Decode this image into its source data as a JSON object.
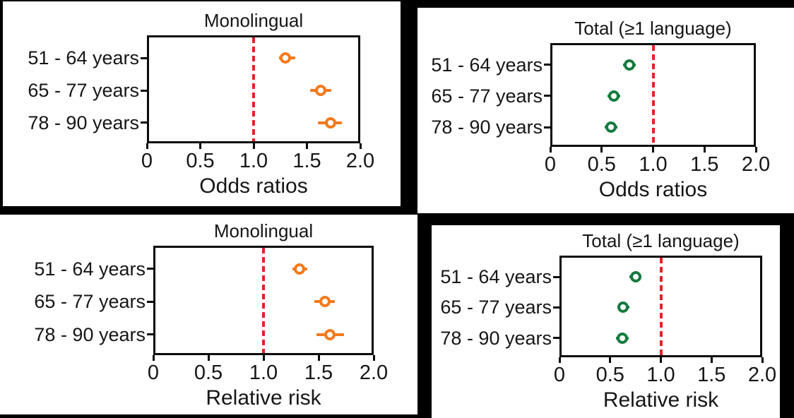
{
  "colors": {
    "background": "#000000",
    "panel": "#ffffff",
    "frame": "#0a0a0a",
    "text": "#161616",
    "reference_line": "#e6212a",
    "monolingual_marker": "#f3791b",
    "total_marker": "#147b3e"
  },
  "chart_data": [
    {
      "id": "monolingual-odds",
      "type": "scatter",
      "title": "Monolingual",
      "xlabel": "Odds ratios",
      "categories": [
        "51 - 64 years",
        "65 - 77 years",
        "78 - 90 years"
      ],
      "xlim": [
        0,
        2.0
      ],
      "xticks": [
        0,
        0.5,
        1.0,
        1.5,
        2.0
      ],
      "xtick_labels": [
        "0",
        "0.5",
        "1.0",
        "1.5",
        "2.0"
      ],
      "reference_x": 1.0,
      "grid": false,
      "series": [
        {
          "name": "Monolingual",
          "color_key": "monolingual_marker",
          "values": [
            1.3,
            1.63,
            1.72
          ],
          "ci_low": [
            1.24,
            1.53,
            1.6
          ],
          "ci_high": [
            1.39,
            1.73,
            1.83
          ]
        }
      ]
    },
    {
      "id": "total-odds",
      "type": "scatter",
      "title": "Total (≥1 language)",
      "xlabel": "Odds ratios",
      "categories": [
        "51 - 64 years",
        "65 - 77 years",
        "78 - 90 years"
      ],
      "xlim": [
        0,
        2.0
      ],
      "xticks": [
        0,
        0.5,
        1.0,
        1.5,
        2.0
      ],
      "xtick_labels": [
        "0",
        "0.5",
        "1.0",
        "1.5",
        "2.0"
      ],
      "reference_x": 1.0,
      "grid": false,
      "series": [
        {
          "name": "Total (≥1 language)",
          "color_key": "total_marker",
          "values": [
            0.77,
            0.62,
            0.59
          ],
          "ci_low": [
            0.71,
            0.56,
            0.53
          ],
          "ci_high": [
            0.83,
            0.68,
            0.65
          ]
        }
      ]
    },
    {
      "id": "monolingual-rr",
      "type": "scatter",
      "title": "Monolingual",
      "xlabel": "Relative risk",
      "categories": [
        "51 - 64 years",
        "65 - 77 years",
        "78 - 90 years"
      ],
      "xlim": [
        0,
        2.0
      ],
      "xticks": [
        0,
        0.5,
        1.0,
        1.5,
        2.0
      ],
      "xtick_labels": [
        "0",
        "0.5",
        "1.0",
        "1.5",
        "2.0"
      ],
      "reference_x": 1.0,
      "grid": false,
      "series": [
        {
          "name": "Monolingual",
          "color_key": "monolingual_marker",
          "values": [
            1.33,
            1.56,
            1.6
          ],
          "ci_low": [
            1.26,
            1.46,
            1.48
          ],
          "ci_high": [
            1.4,
            1.65,
            1.73
          ]
        }
      ]
    },
    {
      "id": "total-rr",
      "type": "scatter",
      "title": "Total (≥1 language)",
      "xlabel": "Relative risk",
      "categories": [
        "51 - 64 years",
        "65 - 77 years",
        "78 - 90 years"
      ],
      "xlim": [
        0,
        2.0
      ],
      "xticks": [
        0,
        0.5,
        1.0,
        1.5,
        2.0
      ],
      "xtick_labels": [
        "0",
        "0.5",
        "1.0",
        "1.5",
        "2.0"
      ],
      "reference_x": 1.0,
      "grid": false,
      "series": [
        {
          "name": "Total (≥1 language)",
          "color_key": "total_marker",
          "values": [
            0.75,
            0.63,
            0.62
          ],
          "ci_low": [
            0.69,
            0.57,
            0.56
          ],
          "ci_high": [
            0.81,
            0.69,
            0.68
          ]
        }
      ]
    }
  ]
}
